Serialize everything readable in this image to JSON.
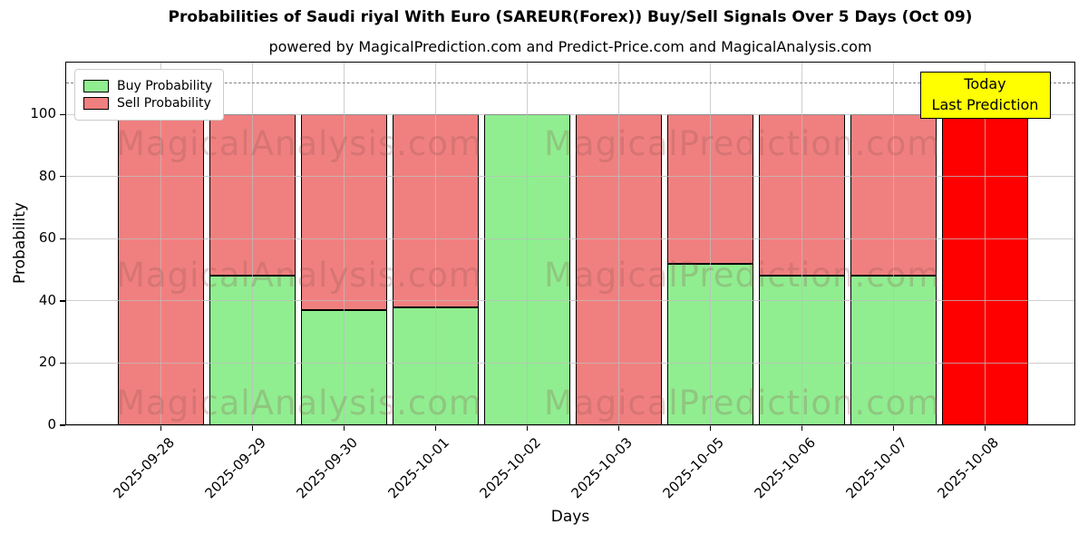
{
  "title": "Probabilities of Saudi riyal With Euro (SAREUR(Forex)) Buy/Sell Signals Over 5 Days (Oct 09)",
  "subtitle": "powered by MagicalPrediction.com and Predict-Price.com and MagicalAnalysis.com",
  "axes": {
    "xlabel": "Days",
    "ylabel": "Probability",
    "yticks": [
      0,
      20,
      40,
      60,
      80,
      100
    ]
  },
  "legend": {
    "items": [
      {
        "label": "Buy Probability",
        "color": "#90EE90"
      },
      {
        "label": "Sell Probability",
        "color": "#F08080"
      }
    ]
  },
  "today_annotation": {
    "lines": [
      "Today",
      "Last Prediction"
    ],
    "bg_color": "#FFFF00"
  },
  "watermarks": {
    "left_text": "MagicalAnalysis.com",
    "right_text": "MagicalPrediction.com",
    "rows": 3
  },
  "chart_data": {
    "type": "bar",
    "stacked": true,
    "title": "Probabilities of Saudi riyal With Euro (SAREUR(Forex)) Buy/Sell Signals Over 5 Days (Oct 09)",
    "xlabel": "Days",
    "ylabel": "Probability",
    "ylim": [
      0,
      117
    ],
    "yticks": [
      0,
      20,
      40,
      60,
      80,
      100
    ],
    "grid": true,
    "legend_position": "upper-left",
    "categories": [
      "2025-09-28",
      "2025-09-29",
      "2025-09-30",
      "2025-10-01",
      "2025-10-02",
      "2025-10-03",
      "2025-10-05",
      "2025-10-06",
      "2025-10-07",
      "2025-10-08"
    ],
    "series": [
      {
        "name": "Buy Probability",
        "color": "#90EE90",
        "values": [
          0,
          48,
          37,
          38,
          100,
          0,
          52,
          48,
          48,
          0
        ]
      },
      {
        "name": "Sell Probability",
        "color": "#F08080",
        "values": [
          100,
          52,
          63,
          62,
          0,
          100,
          48,
          52,
          52,
          100
        ]
      }
    ],
    "today_bar": {
      "category": "2025-10-08",
      "color": "#FF0000",
      "label": [
        "Today",
        "Last Prediction"
      ]
    },
    "reference_line": {
      "y": 110,
      "style": "dashed",
      "color": "#808080"
    }
  }
}
